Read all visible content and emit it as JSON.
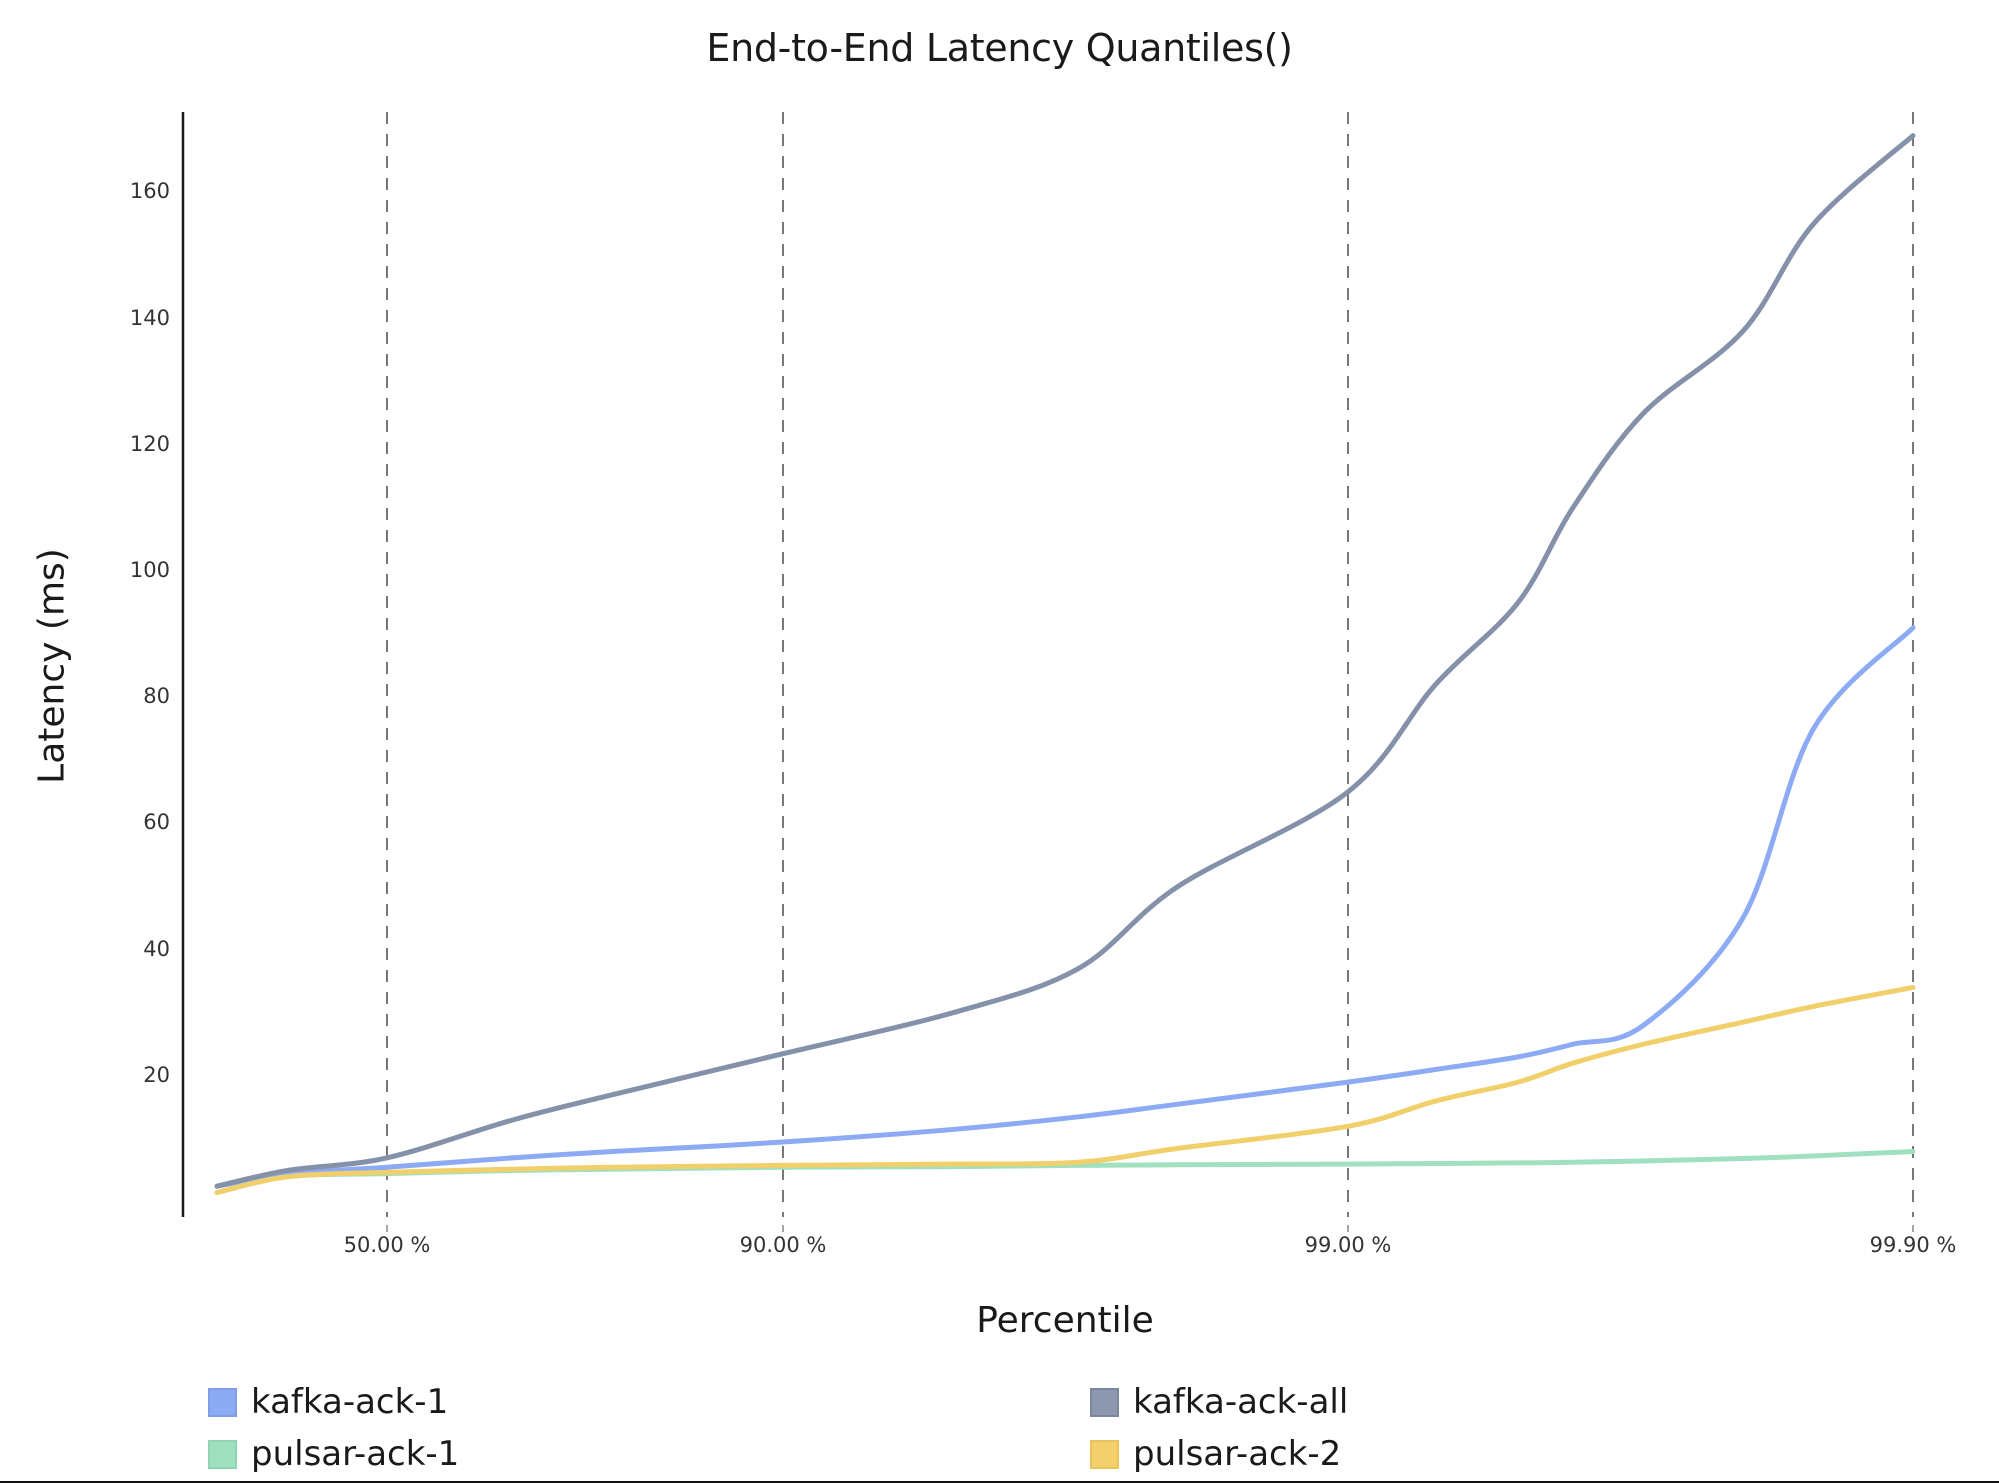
{
  "chart_data": {
    "type": "line",
    "title": "End-to-End Latency Quantiles()",
    "xlabel": "Percentile",
    "ylabel": "Latency (ms)",
    "x_scale": "log-percentile (1/(1-p))",
    "xticks": [
      "50.00 %",
      "90.00 %",
      "99.00 %",
      "99.90 %"
    ],
    "yticks": [
      20,
      40,
      60,
      80,
      100,
      120,
      140,
      160
    ],
    "ylim": [
      0,
      175
    ],
    "grid": "vertical dashed lines at x ticks",
    "legend_position": "bottom, 2 columns",
    "x": [
      0,
      25,
      50,
      70,
      80,
      90,
      95,
      97,
      98,
      99,
      99.3,
      99.5,
      99.6,
      99.7,
      99.8,
      99.85,
      99.9
    ],
    "series": [
      {
        "name": "kafka-ack-1",
        "color": "#8dabf4",
        "values": [
          2.5,
          4.5,
          5.5,
          7,
          8,
          9.5,
          11.5,
          13.5,
          15.5,
          19,
          21,
          23,
          25,
          28,
          45,
          75,
          91
        ]
      },
      {
        "name": "kafka-ack-all",
        "color": "#8491a9",
        "values": [
          2.5,
          5,
          7,
          13,
          17,
          23.5,
          30,
          37,
          50,
          65,
          82,
          95,
          110,
          125,
          138,
          155,
          169
        ]
      },
      {
        "name": "pulsar-ack-1",
        "color": "#9ee0c0",
        "values": [
          1.5,
          4,
          4.5,
          5,
          5.2,
          5.5,
          5.6,
          5.8,
          5.9,
          6,
          6.1,
          6.2,
          6.3,
          6.5,
          6.9,
          7.3,
          8
        ]
      },
      {
        "name": "pulsar-ack-2",
        "color": "#f1cf6a",
        "values": [
          1.5,
          4,
          4.7,
          5.2,
          5.5,
          5.8,
          6,
          6.3,
          8.5,
          12,
          16,
          19,
          22,
          25,
          28.5,
          31,
          34
        ]
      }
    ]
  },
  "legend": [
    {
      "label": "kafka-ack-1",
      "color": "#8dabf4",
      "border": "#7f9de8"
    },
    {
      "label": "kafka-ack-all",
      "color": "#8d98b0",
      "border": "#7a869e"
    },
    {
      "label": "pulsar-ack-1",
      "color": "#9ee0c0",
      "border": "#8fd5b3"
    },
    {
      "label": "pulsar-ack-2",
      "color": "#f3d06c",
      "border": "#e8c25a"
    }
  ]
}
